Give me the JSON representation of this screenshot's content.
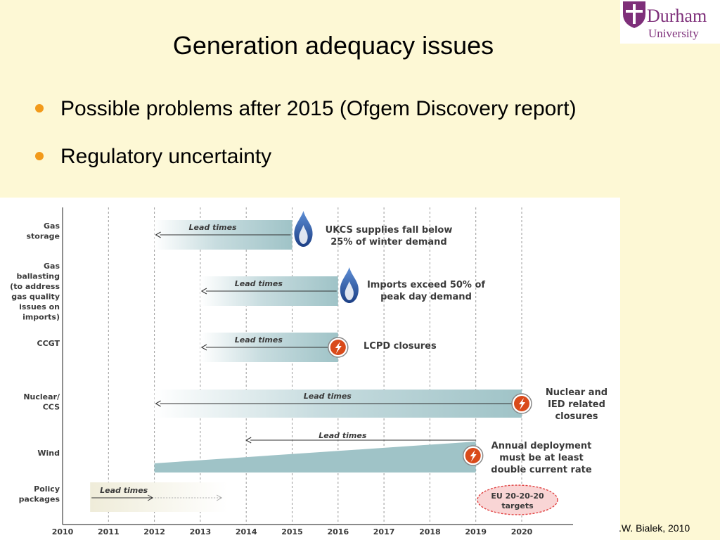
{
  "title": "Generation adequacy issues",
  "bullets": [
    "Possible problems after 2015 (Ofgem Discovery report)",
    "Regulatory uncertainty"
  ],
  "logo": {
    "line1": "Durham",
    "line2": "University"
  },
  "credit": ".W. Bialek, 2010",
  "colors": {
    "bar": "#9fc3c7",
    "flame": "#2a5da8",
    "fire_badge": "#d94a1a",
    "policy_text": "#d0021b",
    "eu_oval": "#f9d5d5"
  },
  "chart_data": {
    "type": "gantt",
    "x": [
      2010,
      2011,
      2012,
      2013,
      2014,
      2015,
      2016,
      2017,
      2018,
      2019,
      2020
    ],
    "xlim": [
      2010,
      2021.2
    ],
    "grid": true,
    "rows": [
      {
        "label": [
          "Gas",
          "storage"
        ],
        "start": 2012,
        "end": 2015,
        "shape": "bar",
        "bar_label": "Lead times",
        "icon": "gas-flame-icon",
        "annotation": [
          "UKCS supplies fall below",
          "25% of winter demand"
        ]
      },
      {
        "label": [
          "Gas",
          "ballasting",
          "(to address",
          "gas quality",
          "issues on",
          "imports)"
        ],
        "start": 2013,
        "end": 2016,
        "shape": "bar",
        "bar_label": "Lead times",
        "icon": "gas-flame-icon",
        "annotation": [
          "Imports exceed 50% of",
          "peak day demand"
        ]
      },
      {
        "label": [
          "CCGT"
        ],
        "start": 2013,
        "end": 2016,
        "shape": "bar",
        "bar_label": "Lead times",
        "icon": "power-plant-icon",
        "annotation": [
          "LCPD closures"
        ]
      },
      {
        "label": [
          "Nuclear/",
          "CCS"
        ],
        "start": 2012,
        "end": 2020,
        "shape": "bar",
        "bar_label": "Lead times",
        "icon": "power-plant-icon",
        "annotation": [
          "Nuclear and",
          "IED related",
          "closures"
        ]
      },
      {
        "label": [
          "Wind"
        ],
        "start": 2012,
        "end": 2019,
        "shape": "wedge",
        "bar_label": "Lead times",
        "arrow_from": 2014,
        "icon": "power-plant-icon",
        "annotation": [
          "Annual deployment",
          "must be at least",
          "double current rate"
        ]
      },
      {
        "label": [
          "Policy",
          "packages"
        ],
        "start": 2010.6,
        "end": 2013.6,
        "shape": "fade",
        "bar_label": "Lead times",
        "highlight": true,
        "badge": [
          "EU 20-20-20",
          "targets"
        ]
      }
    ]
  }
}
